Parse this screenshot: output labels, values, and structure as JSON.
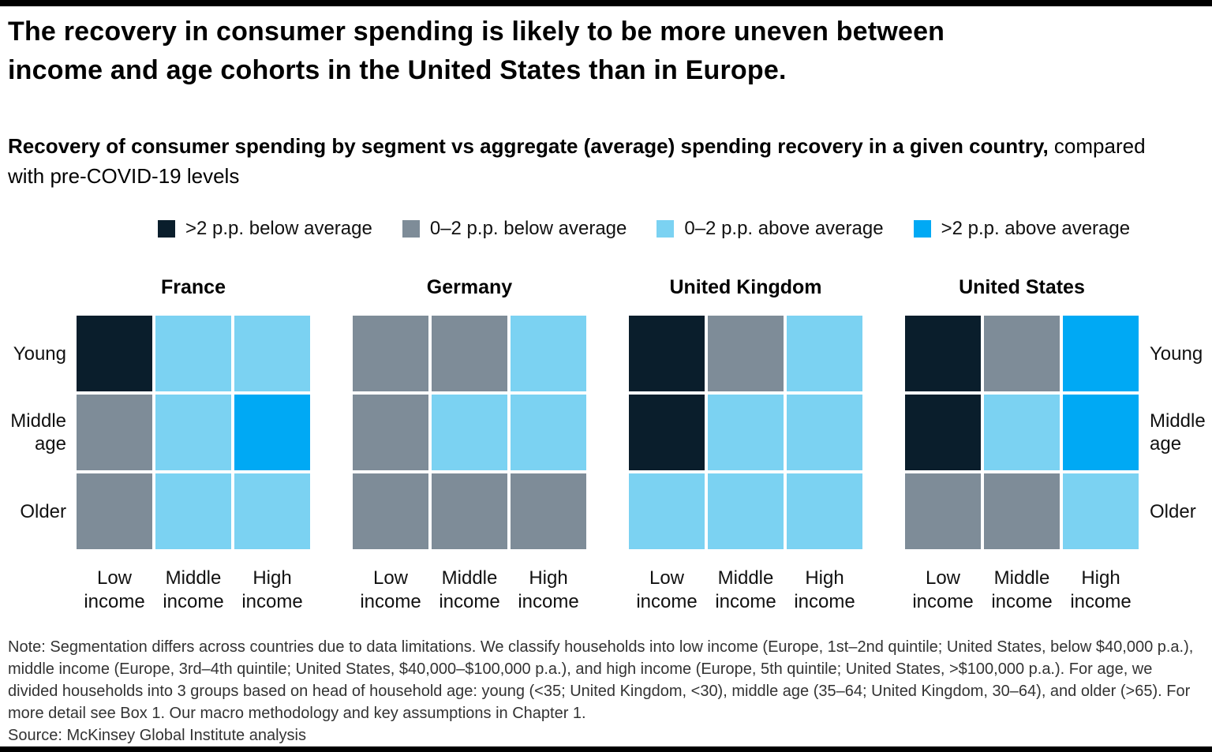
{
  "header": {
    "title_lines": [
      "The recovery in consumer spending is likely to be more uneven between",
      "income and age cohorts in the United States than in Europe."
    ],
    "subtitle_bold": "Recovery of consumer spending by segment vs aggregate (average) spending recovery in a given country,",
    "subtitle_regular": " compared with pre-COVID-19 levels"
  },
  "legend": [
    {
      "key": "pp2_below",
      "label": ">2 p.p. below average",
      "color": "#0a1e2c"
    },
    {
      "key": "pp02_below",
      "label": "0–2 p.p. below average",
      "color": "#7e8c98"
    },
    {
      "key": "pp02_above",
      "label": "0–2 p.p. above average",
      "color": "#7bd2f2"
    },
    {
      "key": "pp2_above",
      "label": ">2 p.p. above average",
      "color": "#00a9f4"
    }
  ],
  "chart_data": {
    "type": "heatmap",
    "title": "Recovery of consumer spending by segment vs aggregate (average) spending recovery in a given country, compared with pre-COVID-19 levels",
    "row_labels": [
      "Young",
      "Middle age",
      "Older"
    ],
    "col_labels": [
      "Low income",
      "Middle income",
      "High income"
    ],
    "scale_categories": [
      ">2 p.p. below average",
      "0–2 p.p. below average",
      "0–2 p.p. above average",
      ">2 p.p. above average"
    ],
    "legend_position": "top",
    "countries": [
      {
        "name": "France",
        "cells": [
          [
            "pp2_below",
            "pp02_above",
            "pp02_above"
          ],
          [
            "pp02_below",
            "pp02_above",
            "pp2_above"
          ],
          [
            "pp02_below",
            "pp02_above",
            "pp02_above"
          ]
        ]
      },
      {
        "name": "Germany",
        "cells": [
          [
            "pp02_below",
            "pp02_below",
            "pp02_above"
          ],
          [
            "pp02_below",
            "pp02_above",
            "pp02_above"
          ],
          [
            "pp02_below",
            "pp02_below",
            "pp02_below"
          ]
        ]
      },
      {
        "name": "United Kingdom",
        "cells": [
          [
            "pp2_below",
            "pp02_below",
            "pp02_above"
          ],
          [
            "pp2_below",
            "pp02_above",
            "pp02_above"
          ],
          [
            "pp02_above",
            "pp02_above",
            "pp02_above"
          ]
        ]
      },
      {
        "name": "United States",
        "cells": [
          [
            "pp2_below",
            "pp02_below",
            "pp2_above"
          ],
          [
            "pp2_below",
            "pp02_above",
            "pp2_above"
          ],
          [
            "pp02_below",
            "pp02_below",
            "pp02_above"
          ]
        ]
      }
    ]
  },
  "footer": {
    "note": "Note: Segmentation differs across countries due to data limitations. We classify households into low income (Europe, 1st–2nd quintile; United States, below $40,000 p.a.), middle income (Europe, 3rd–4th quintile; United States, $40,000–$100,000 p.a.), and high income (Europe, 5th quintile; United States, >$100,000 p.a.). For age, we divided households into 3 groups based on head of household age: young (<35; United Kingdom, <30), middle age (35–64; United Kingdom, 30–64), and older (>65). For more detail see Box 1. Our macro methodology and key assumptions in Chapter 1.",
    "source": "Source: McKinsey Global Institute analysis"
  }
}
